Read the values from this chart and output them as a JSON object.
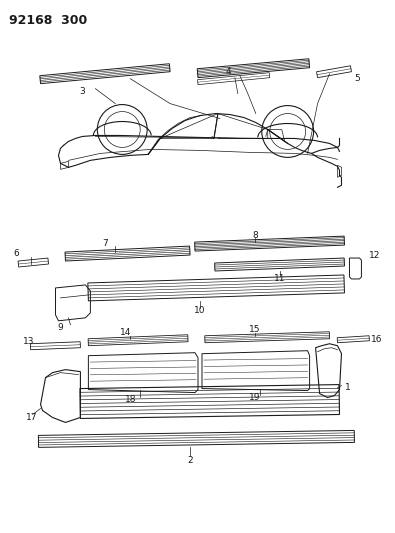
{
  "title": "92168  300",
  "bg_color": "#ffffff",
  "line_color": "#1a1a1a",
  "title_fontsize": 9,
  "label_fontsize": 6.5,
  "figsize": [
    3.95,
    5.33
  ],
  "dpi": 100
}
